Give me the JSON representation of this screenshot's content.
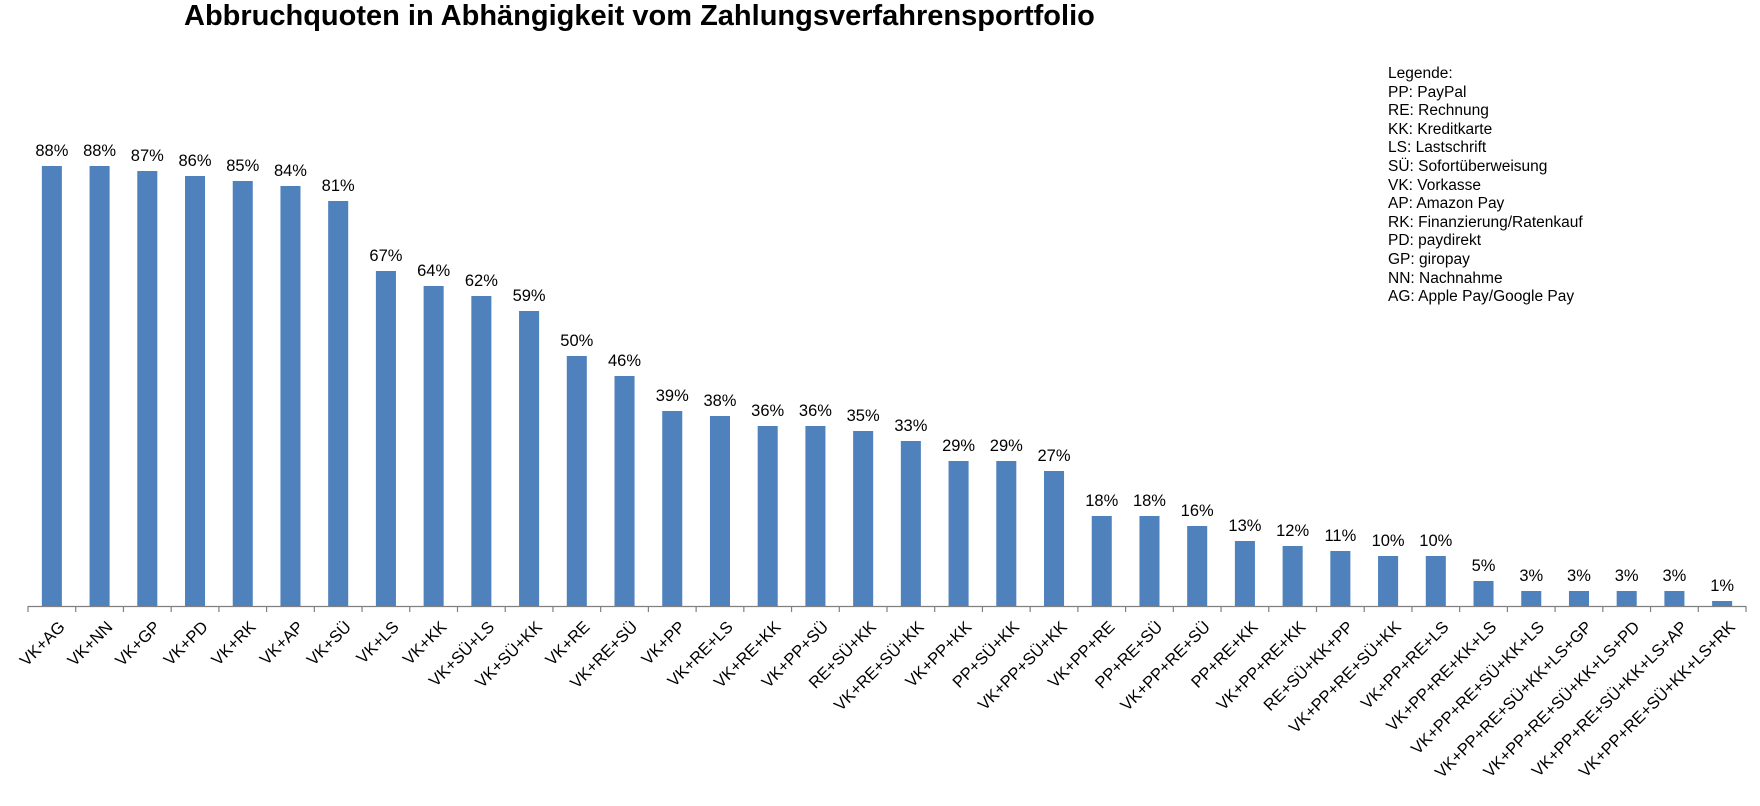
{
  "chart_data": {
    "type": "bar",
    "title": "Abbruchquoten in Abhängigkeit vom Zahlungsverfahrensportfolio",
    "xlabel": "",
    "ylabel": "",
    "ylim": [
      0,
      1
    ],
    "value_format": "percent",
    "bar_color": "#4F81BD",
    "grid": false,
    "legend_title": "Legende:",
    "legend_items": [
      "PP: PayPal",
      "RE: Rechnung",
      "KK: Kreditkarte",
      "LS: Lastschrift",
      "SÜ: Sofortüberweisung",
      "VK: Vorkasse",
      "AP: Amazon Pay",
      "RK: Finanzierung/Ratenkauf",
      "PD: paydirekt",
      "GP: giropay",
      "NN: Nachnahme",
      "AG: Apple Pay/Google Pay"
    ],
    "legend_position": "top-right",
    "categories": [
      "VK+AG",
      "VK+NN",
      "VK+GP",
      "VK+PD",
      "VK+RK",
      "VK+AP",
      "VK+SÜ",
      "VK+LS",
      "VK+KK",
      "VK+SÜ+LS",
      "VK+SÜ+KK",
      "VK+RE",
      "VK+RE+SÜ",
      "VK+PP",
      "VK+RE+LS",
      "VK+RE+KK",
      "VK+PP+SÜ",
      "RE+SÜ+KK",
      "VK+RE+SÜ+KK",
      "VK+PP+KK",
      "PP+SÜ+KK",
      "VK+PP+SÜ+KK",
      "VK+PP+RE",
      "PP+RE+SÜ",
      "VK+PP+RE+SÜ",
      "PP+RE+KK",
      "VK+PP+RE+KK",
      "RE+SÜ+KK+PP",
      "VK+PP+RE+SÜ+KK",
      "VK+PP+RE+LS",
      "VK+PP+RE+KK+LS",
      "VK+PP+RE+SÜ+KK+LS",
      "VK+PP+RE+SÜ+KK+LS+GP",
      "VK+PP+RE+SÜ+KK+LS+PD",
      "VK+PP+RE+SÜ+KK+LS+AP",
      "VK+PP+RE+SÜ+KK+LS+RK"
    ],
    "values": [
      0.88,
      0.88,
      0.87,
      0.86,
      0.85,
      0.84,
      0.81,
      0.67,
      0.64,
      0.62,
      0.59,
      0.5,
      0.46,
      0.39,
      0.38,
      0.36,
      0.36,
      0.35,
      0.33,
      0.29,
      0.29,
      0.27,
      0.18,
      0.18,
      0.16,
      0.13,
      0.12,
      0.11,
      0.1,
      0.1,
      0.05,
      0.03,
      0.03,
      0.03,
      0.03,
      0.01
    ],
    "data_labels": [
      "88%",
      "88%",
      "87%",
      "86%",
      "85%",
      "84%",
      "81%",
      "67%",
      "64%",
      "62%",
      "59%",
      "50%",
      "46%",
      "39%",
      "38%",
      "36%",
      "36%",
      "35%",
      "33%",
      "29%",
      "29%",
      "27%",
      "18%",
      "18%",
      "16%",
      "13%",
      "12%",
      "11%",
      "10%",
      "10%",
      "5%",
      "3%",
      "3%",
      "3%",
      "3%",
      "1%"
    ]
  }
}
